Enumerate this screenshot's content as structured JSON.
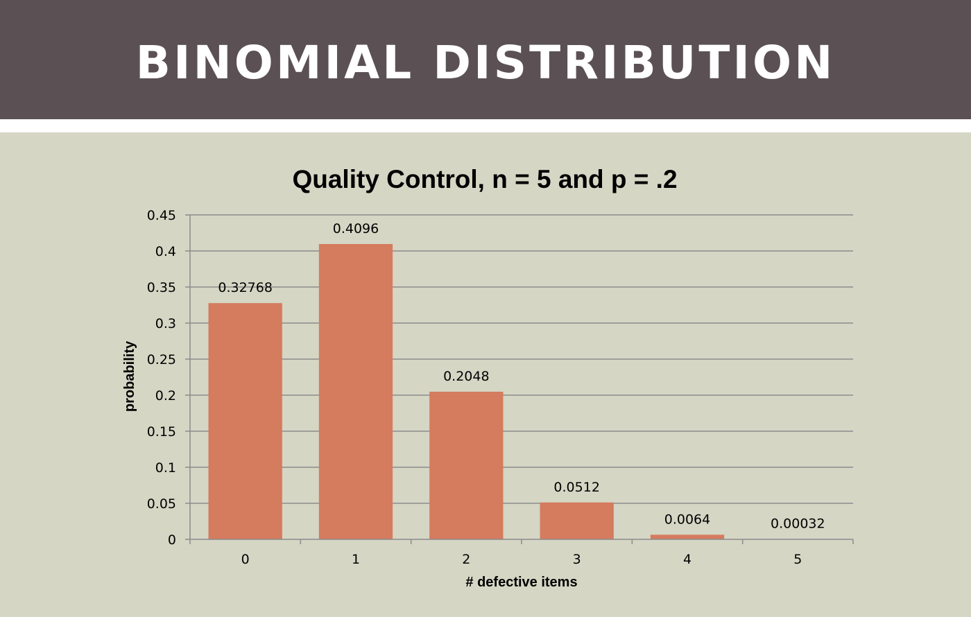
{
  "slide": {
    "title": "BINOMIAL DISTRIBUTION"
  },
  "colors": {
    "header_bg": "#5b5154",
    "content_bg": "#d5d6c4",
    "bar": "#d57b5e",
    "gridline": "#8c8c8c"
  },
  "chart_data": {
    "type": "bar",
    "title": "Quality Control, n = 5 and p = .2",
    "xlabel": "# defective items",
    "ylabel": "probability",
    "categories": [
      "0",
      "1",
      "2",
      "3",
      "4",
      "5"
    ],
    "values": [
      0.32768,
      0.4096,
      0.2048,
      0.0512,
      0.0064,
      0.00032
    ],
    "data_labels": [
      "0.32768",
      "0.4096",
      "0.2048",
      "0.0512",
      "0.0064",
      "0.00032"
    ],
    "ylim": [
      0,
      0.45
    ],
    "yticks": [
      "0",
      "0.05",
      "0.1",
      "0.15",
      "0.2",
      "0.25",
      "0.3",
      "0.35",
      "0.4",
      "0.45"
    ],
    "grid": true,
    "legend": "none"
  }
}
